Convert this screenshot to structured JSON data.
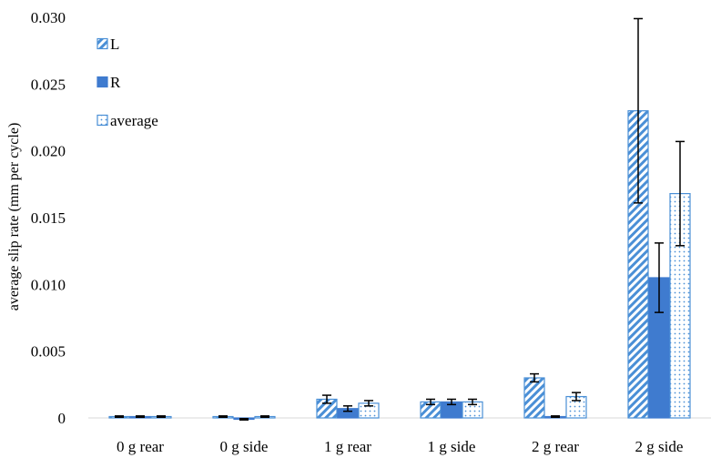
{
  "chart_data": {
    "type": "bar",
    "title": "",
    "xlabel": "",
    "ylabel": "average slip rate (mm per cycle)",
    "ylim": [
      0,
      0.03
    ],
    "yticks": [
      0,
      0.005,
      0.01,
      0.015,
      0.02,
      0.025,
      0.03
    ],
    "ytick_labels": [
      "0",
      "0.005",
      "0.010",
      "0.015",
      "0.020",
      "0.025",
      "0.030"
    ],
    "grid": false,
    "legend_position": "top-left",
    "categories": [
      "0 g rear",
      "0 g side",
      "1 g rear",
      "1 g side",
      "2 g rear",
      "2 g side"
    ],
    "series": [
      {
        "name": "L",
        "pattern": "diagonal-hatch",
        "color": "#4a8fd6",
        "values": [
          0.0001,
          0.0001,
          0.0014,
          0.0012,
          0.003,
          0.023
        ],
        "errors": [
          5e-05,
          5e-05,
          0.0003,
          0.0002,
          0.0003,
          0.0069
        ]
      },
      {
        "name": "R",
        "pattern": "solid",
        "color": "#3f7bcf",
        "values": [
          0.0001,
          -0.0001,
          0.0007,
          0.0012,
          0.0001,
          0.0105
        ],
        "errors": [
          5e-05,
          5e-05,
          0.0002,
          0.0002,
          5e-05,
          0.0026
        ]
      },
      {
        "name": "average",
        "pattern": "dotted",
        "color": "#4a8fd6",
        "values": [
          0.0001,
          0.0001,
          0.0011,
          0.0012,
          0.0016,
          0.0168
        ],
        "errors": [
          5e-05,
          5e-05,
          0.0002,
          0.0002,
          0.0003,
          0.0039
        ]
      }
    ]
  }
}
